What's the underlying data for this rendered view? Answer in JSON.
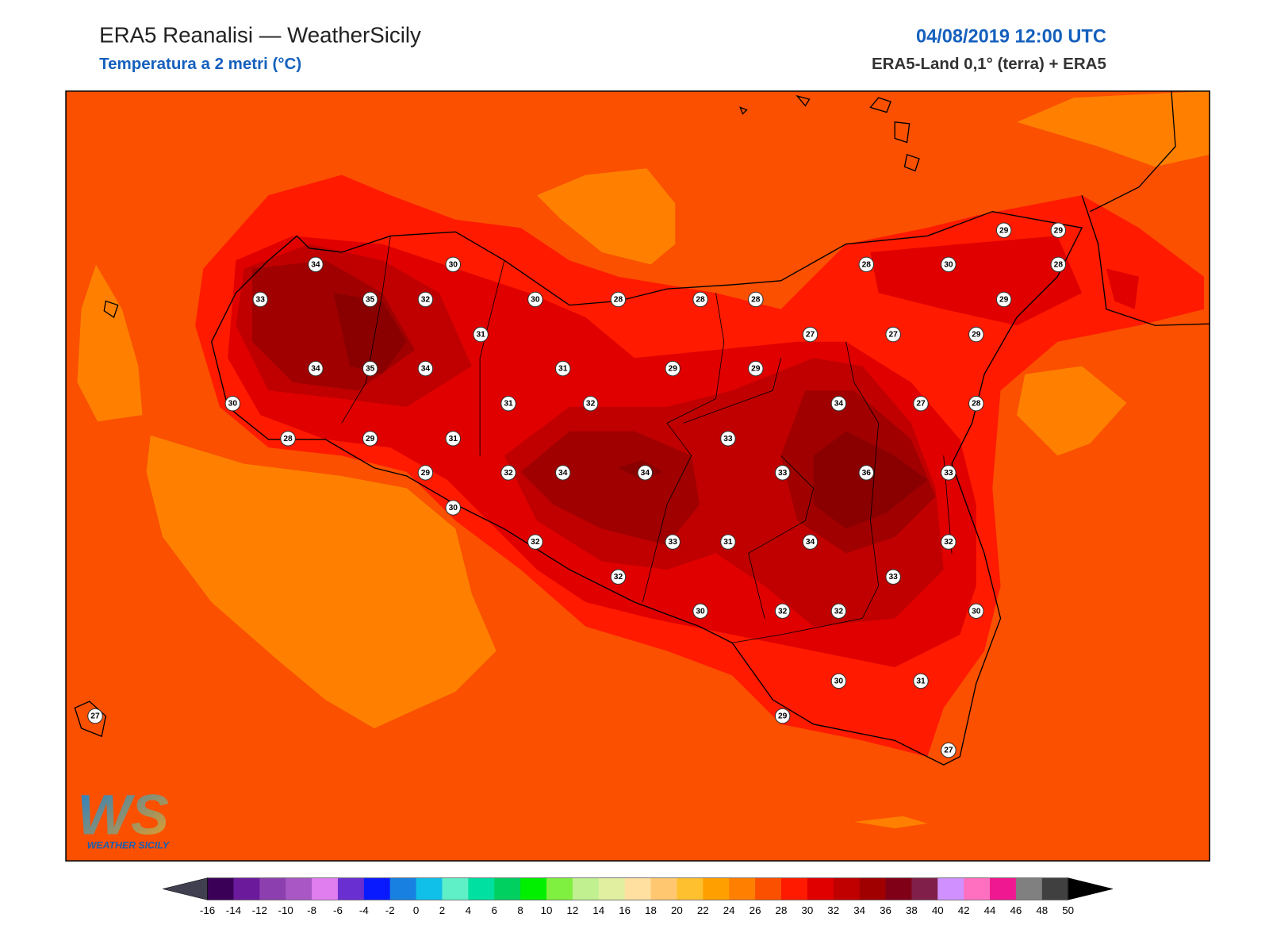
{
  "header": {
    "title": "ERA5 Reanalisi — WeatherSicily",
    "subtitle": "Temperatura a 2 metri (°C)",
    "date": "04/08/2019 12:00 UTC",
    "source": "ERA5-Land 0,1° (terra) + ERA5"
  },
  "map": {
    "stations": [
      34,
      30,
      28,
      30,
      28,
      29,
      29,
      33,
      35,
      32,
      30,
      28,
      28,
      28,
      29,
      31,
      27,
      27,
      29,
      34,
      35,
      34,
      31,
      29,
      29,
      30,
      31,
      32,
      34,
      27,
      28,
      28,
      29,
      31,
      33,
      29,
      32,
      34,
      34,
      33,
      36,
      33,
      30,
      32,
      33,
      31,
      34,
      32,
      32,
      33,
      30,
      32,
      32,
      30,
      30,
      31,
      27,
      29,
      27
    ]
  },
  "colorbar": {
    "ticks": [
      -16,
      -14,
      -12,
      -10,
      -8,
      -6,
      -4,
      -2,
      0,
      2,
      4,
      6,
      8,
      10,
      12,
      14,
      16,
      18,
      20,
      22,
      24,
      26,
      28,
      30,
      32,
      34,
      36,
      38,
      40,
      42,
      44,
      46,
      48,
      50
    ],
    "colors": [
      "#3a0058",
      "#6a1a9a",
      "#8c3fae",
      "#a857c4",
      "#e07ef0",
      "#6a2fd0",
      "#0a1aff",
      "#1880e0",
      "#10c0e8",
      "#60f0c8",
      "#00e0a0",
      "#00d060",
      "#00f000",
      "#80f040",
      "#c0f090",
      "#e0f0a0",
      "#ffe0a0",
      "#ffc870",
      "#ffc030",
      "#ffa000",
      "#ff8000",
      "#fa5000",
      "#ff1a00",
      "#e00000",
      "#c00000",
      "#a00000",
      "#800018",
      "#80204a",
      "#d090ff",
      "#ff70c0",
      "#f01890",
      "#808080",
      "#404040"
    ],
    "under": "#404050",
    "over": "#000000"
  },
  "logo": {
    "text": "WS",
    "subtitle": "WEATHER SICILY"
  }
}
